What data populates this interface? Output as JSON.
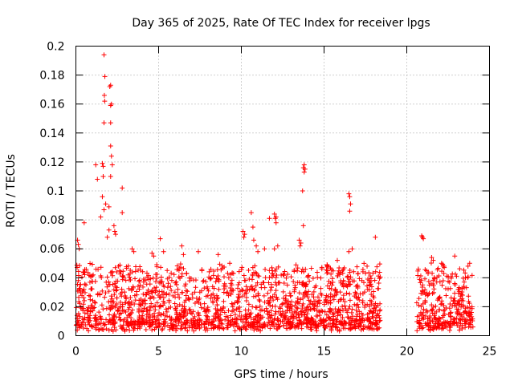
{
  "chart_data": {
    "type": "scatter",
    "title": "Day 365 of 2025, Rate Of TEC Index for receiver lpgs",
    "xlabel": "GPS time / hours",
    "ylabel": "ROTI / TECUs",
    "xlim": [
      0,
      25
    ],
    "ylim": [
      0,
      0.2
    ],
    "x_ticks": [
      0,
      5,
      10,
      15,
      20,
      25
    ],
    "x_tick_labels": [
      "0",
      "5",
      "10",
      "15",
      "20",
      "25"
    ],
    "y_ticks": [
      0,
      0.02,
      0.04,
      0.06,
      0.08,
      0.1,
      0.12,
      0.14,
      0.16,
      0.18,
      0.2
    ],
    "y_tick_labels": [
      "0",
      "0.02",
      "0.04",
      "0.06",
      "0.08",
      "0.1",
      "0.12",
      "0.14",
      "0.16",
      "0.18",
      "0.2"
    ],
    "grid": true,
    "marker": "+",
    "series_color": "#ff0000",
    "coverage_segments": [
      {
        "start": 0.0,
        "end": 18.4
      },
      {
        "start": 20.6,
        "end": 24.0
      }
    ],
    "bulk_range": [
      0.003,
      0.045
    ],
    "outliers": [
      [
        1.7,
        0.194
      ],
      [
        1.75,
        0.179
      ],
      [
        1.72,
        0.166
      ],
      [
        1.74,
        0.162
      ],
      [
        2.1,
        0.173
      ],
      [
        2.05,
        0.172
      ],
      [
        2.15,
        0.16
      ],
      [
        2.1,
        0.159
      ],
      [
        1.7,
        0.147
      ],
      [
        2.1,
        0.147
      ],
      [
        2.1,
        0.131
      ],
      [
        2.15,
        0.124
      ],
      [
        1.6,
        0.119
      ],
      [
        1.65,
        0.117
      ],
      [
        2.2,
        0.118
      ],
      [
        1.2,
        0.118
      ],
      [
        1.3,
        0.108
      ],
      [
        1.65,
        0.11
      ],
      [
        2.1,
        0.11
      ],
      [
        2.8,
        0.102
      ],
      [
        1.6,
        0.096
      ],
      [
        1.8,
        0.091
      ],
      [
        2.0,
        0.089
      ],
      [
        2.8,
        0.085
      ],
      [
        1.7,
        0.087
      ],
      [
        1.5,
        0.082
      ],
      [
        0.5,
        0.078
      ],
      [
        2.3,
        0.076
      ],
      [
        2.35,
        0.072
      ],
      [
        2.4,
        0.07
      ],
      [
        2.0,
        0.073
      ],
      [
        1.9,
        0.068
      ],
      [
        0.1,
        0.066
      ],
      [
        0.15,
        0.063
      ],
      [
        0.2,
        0.06
      ],
      [
        13.8,
        0.118
      ],
      [
        13.75,
        0.116
      ],
      [
        13.85,
        0.115
      ],
      [
        13.8,
        0.113
      ],
      [
        13.7,
        0.1
      ],
      [
        13.75,
        0.076
      ],
      [
        13.5,
        0.066
      ],
      [
        13.6,
        0.064
      ],
      [
        13.55,
        0.062
      ],
      [
        16.5,
        0.098
      ],
      [
        16.55,
        0.096
      ],
      [
        16.6,
        0.091
      ],
      [
        16.55,
        0.086
      ],
      [
        18.1,
        0.068
      ],
      [
        16.7,
        0.06
      ],
      [
        16.5,
        0.058
      ],
      [
        10.6,
        0.085
      ],
      [
        10.1,
        0.072
      ],
      [
        10.2,
        0.07
      ],
      [
        10.15,
        0.068
      ],
      [
        10.7,
        0.075
      ],
      [
        10.75,
        0.066
      ],
      [
        10.9,
        0.062
      ],
      [
        11.0,
        0.058
      ],
      [
        12.0,
        0.084
      ],
      [
        12.1,
        0.082
      ],
      [
        12.05,
        0.081
      ],
      [
        11.7,
        0.081
      ],
      [
        12.1,
        0.078
      ],
      [
        12.2,
        0.062
      ],
      [
        12.0,
        0.06
      ],
      [
        11.4,
        0.06
      ],
      [
        5.1,
        0.067
      ],
      [
        5.3,
        0.058
      ],
      [
        6.4,
        0.062
      ],
      [
        6.5,
        0.056
      ],
      [
        7.4,
        0.058
      ],
      [
        3.4,
        0.06
      ],
      [
        3.5,
        0.058
      ],
      [
        4.6,
        0.057
      ],
      [
        4.7,
        0.055
      ],
      [
        8.6,
        0.056
      ],
      [
        9.3,
        0.05
      ],
      [
        15.2,
        0.048
      ],
      [
        15.8,
        0.052
      ],
      [
        17.6,
        0.048
      ],
      [
        20.9,
        0.069
      ],
      [
        20.95,
        0.068
      ],
      [
        21.0,
        0.067
      ],
      [
        21.5,
        0.054
      ],
      [
        21.6,
        0.052
      ],
      [
        22.1,
        0.05
      ],
      [
        22.2,
        0.048
      ],
      [
        22.9,
        0.055
      ],
      [
        23.8,
        0.05
      ],
      [
        23.7,
        0.048
      ],
      [
        20.7,
        0.046
      ],
      [
        21.3,
        0.044
      ]
    ]
  }
}
